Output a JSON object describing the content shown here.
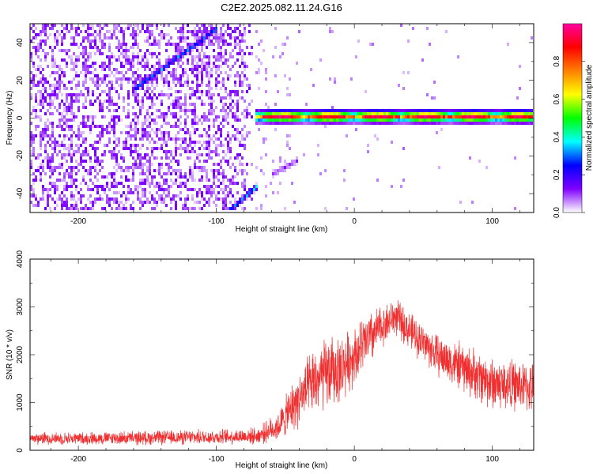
{
  "title": "C2E2.2025.082.11.24.G16",
  "chart_data": [
    {
      "type": "heatmap",
      "xlabel": "Height of straight line (km)",
      "ylabel": "Frequency (Hz)",
      "xlim": [
        -235,
        130
      ],
      "ylim": [
        -50,
        50
      ],
      "xticks": [
        -200,
        -100,
        0,
        100
      ],
      "yticks": [
        -40,
        -20,
        0,
        20,
        40
      ],
      "colorbar": {
        "label": "Normalized spectral amplitude",
        "range": [
          0,
          1
        ],
        "ticks": [
          0.0,
          0.2,
          0.4,
          0.6,
          0.8
        ],
        "tick_labels": [
          "0.0",
          "0.2",
          "0.4",
          "0.6",
          "0.8"
        ],
        "colors": [
          "#ffffff",
          "#8000ff",
          "#0000ff",
          "#00ffff",
          "#00ff00",
          "#ffff00",
          "#ff8000",
          "#ff0000",
          "#ff00a0"
        ]
      },
      "noise_region": {
        "x": [
          -235,
          -72
        ],
        "amplitude": 0.12
      },
      "features": [
        {
          "kind": "tone",
          "x": [
            -72,
            130
          ],
          "y": 0.8,
          "width_hz": 4,
          "amplitude_peak": 0.95
        },
        {
          "kind": "diagonal",
          "x": [
            -160,
            -100
          ],
          "y": [
            15,
            47
          ],
          "amplitude": 0.3
        },
        {
          "kind": "diagonal",
          "x": [
            -92,
            -70
          ],
          "y": [
            -50,
            -36
          ],
          "amplitude": 0.35
        },
        {
          "kind": "diagonal",
          "x": [
            -60,
            -40
          ],
          "y": [
            -30,
            -22
          ],
          "amplitude": 0.1
        }
      ],
      "grid": false
    },
    {
      "type": "line",
      "xlabel": "Height of straight line (km)",
      "ylabel": "SNR (10 * v/v)",
      "xlim": [
        -235,
        130
      ],
      "ylim": [
        0,
        4000
      ],
      "xticks": [
        -200,
        -100,
        0,
        100
      ],
      "yticks": [
        0,
        1000,
        2000,
        3000,
        4000
      ],
      "series": [
        {
          "color": "#f03030",
          "x": [
            -235,
            -200,
            -150,
            -100,
            -70,
            -55,
            -45,
            -30,
            -20,
            -10,
            0,
            10,
            20,
            30,
            40,
            60,
            80,
            100,
            120,
            130
          ],
          "y": [
            250,
            250,
            260,
            280,
            300,
            500,
            900,
            1400,
            1600,
            1700,
            2000,
            2300,
            2600,
            2800,
            2500,
            2000,
            1700,
            1400,
            1350,
            1300
          ],
          "noise_amplitude": [
            150,
            150,
            170,
            180,
            200,
            350,
            600,
            800,
            900,
            800,
            700,
            700,
            500,
            450,
            450,
            500,
            600,
            650,
            600,
            600
          ]
        }
      ],
      "grid": false
    }
  ]
}
